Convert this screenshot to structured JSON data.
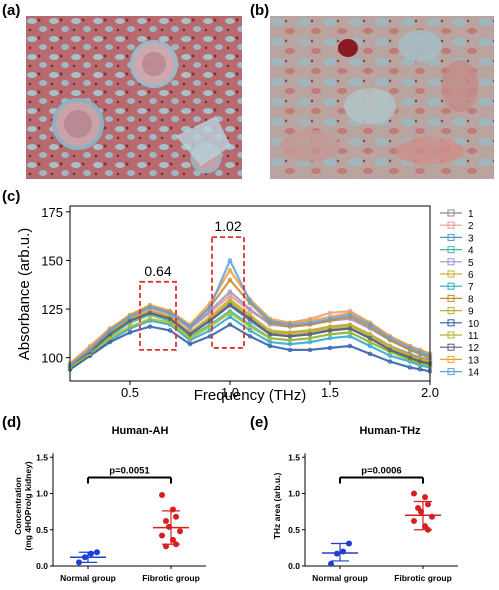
{
  "panels": {
    "a": {
      "label": "(a)"
    },
    "b": {
      "label": "(b)"
    },
    "c": {
      "label": "(c)"
    },
    "d": {
      "label": "(d)"
    },
    "e": {
      "label": "(e)"
    }
  },
  "colors": {
    "red": "#d62020",
    "blue": "#1f3fd0",
    "dash": "#e03030"
  },
  "chart_data": [
    {
      "id": "c",
      "type": "line",
      "xlabel": "Frequency (THz)",
      "ylabel": "Absorbance (arb.u.)",
      "xlim": [
        0.2,
        2.0
      ],
      "ylim": [
        88,
        178
      ],
      "xticks": [
        "0.5",
        "1.0",
        "1.5",
        "2.0"
      ],
      "yticks": [
        "100",
        "125",
        "150",
        "175"
      ],
      "xtick_values": [
        0.5,
        1.0,
        1.5,
        2.0
      ],
      "ytick_values": [
        100,
        125,
        150,
        175
      ],
      "annotations": [
        {
          "text": "0.64",
          "x0": 0.55,
          "x1": 0.73,
          "y0": 104,
          "y1": 139
        },
        {
          "text": "1.02",
          "x0": 0.91,
          "x1": 1.07,
          "y0": 105,
          "y1": 162
        }
      ],
      "legend_position": "right",
      "series": [
        {
          "name": "1",
          "color": "#8a8a8a",
          "marker": "square",
          "values": [
            96,
            104,
            113,
            120,
            124,
            121,
            113,
            120,
            128,
            120,
            113,
            113,
            114,
            116,
            117,
            112,
            106,
            102,
            100,
            99
          ]
        },
        {
          "name": "2",
          "color": "#e79a8a",
          "marker": "circle",
          "values": [
            97,
            106,
            115,
            121,
            125,
            122,
            115,
            123,
            132,
            124,
            118,
            118,
            120,
            123,
            124,
            118,
            111,
            106,
            104,
            102
          ]
        },
        {
          "name": "3",
          "color": "#4f8fd6",
          "marker": "triangle",
          "values": [
            95,
            103,
            112,
            119,
            123,
            120,
            112,
            119,
            127,
            119,
            112,
            111,
            112,
            114,
            115,
            110,
            104,
            100,
            98,
            97
          ]
        },
        {
          "name": "4",
          "color": "#3fb8a8",
          "marker": "triangle-down",
          "values": [
            94,
            102,
            111,
            118,
            122,
            119,
            111,
            117,
            124,
            117,
            110,
            109,
            110,
            112,
            113,
            108,
            103,
            99,
            97,
            96
          ]
        },
        {
          "name": "5",
          "color": "#9b8fd0",
          "marker": "diamond",
          "values": [
            96,
            105,
            114,
            121,
            126,
            123,
            115,
            124,
            134,
            125,
            117,
            116,
            117,
            119,
            120,
            115,
            109,
            104,
            102,
            100
          ]
        },
        {
          "name": "6",
          "color": "#c9b23a",
          "marker": "triangle-left",
          "values": [
            95,
            103,
            113,
            120,
            124,
            121,
            113,
            121,
            130,
            122,
            114,
            113,
            114,
            116,
            117,
            112,
            106,
            101,
            99,
            98
          ]
        },
        {
          "name": "7",
          "color": "#2aa6c9",
          "marker": "x",
          "values": [
            94,
            101,
            109,
            115,
            119,
            117,
            109,
            114,
            121,
            114,
            108,
            107,
            108,
            110,
            111,
            106,
            101,
            98,
            96,
            95
          ]
        },
        {
          "name": "8",
          "color": "#c48a2a",
          "marker": "star",
          "values": [
            96,
            104,
            114,
            122,
            127,
            124,
            116,
            126,
            140,
            128,
            118,
            116,
            117,
            119,
            121,
            116,
            109,
            104,
            102,
            100
          ]
        },
        {
          "name": "9",
          "color": "#b8b030",
          "marker": "hexagon",
          "values": [
            95,
            103,
            112,
            119,
            123,
            120,
            112,
            120,
            129,
            121,
            113,
            112,
            113,
            115,
            116,
            111,
            105,
            101,
            99,
            98
          ]
        },
        {
          "name": "10",
          "color": "#2a5aa8",
          "marker": "pentagon",
          "values": [
            94,
            101,
            108,
            113,
            116,
            114,
            107,
            111,
            117,
            111,
            106,
            104,
            104,
            105,
            106,
            102,
            98,
            95,
            94,
            93
          ]
        },
        {
          "name": "11",
          "color": "#a8b82a",
          "marker": "hexagon",
          "values": [
            95,
            102,
            110,
            116,
            120,
            118,
            110,
            116,
            123,
            116,
            110,
            109,
            110,
            112,
            113,
            108,
            103,
            99,
            97,
            96
          ]
        },
        {
          "name": "12",
          "color": "#5a5a7a",
          "marker": "x-square",
          "values": [
            96,
            103,
            112,
            119,
            123,
            120,
            112,
            119,
            127,
            120,
            112,
            111,
            112,
            114,
            115,
            110,
            104,
            100,
            98,
            97
          ]
        },
        {
          "name": "13",
          "color": "#f0a030",
          "marker": "triangle",
          "values": [
            97,
            105,
            115,
            122,
            127,
            124,
            117,
            128,
            145,
            130,
            120,
            118,
            119,
            121,
            123,
            118,
            111,
            106,
            104,
            102
          ]
        },
        {
          "name": "14",
          "color": "#5aa0e0",
          "marker": "pentagon",
          "values": [
            96,
            104,
            114,
            121,
            126,
            123,
            116,
            126,
            150,
            129,
            119,
            117,
            118,
            120,
            122,
            117,
            110,
            105,
            103,
            101
          ]
        }
      ],
      "x": [
        0.2,
        0.3,
        0.4,
        0.5,
        0.6,
        0.7,
        0.8,
        0.9,
        1.0,
        1.1,
        1.2,
        1.3,
        1.4,
        1.5,
        1.6,
        1.7,
        1.8,
        1.9,
        1.95,
        2.0
      ]
    },
    {
      "id": "d",
      "type": "scatter",
      "title": "Human-AH",
      "ylabel_lines": [
        "Concentration",
        "(mg 4HOPro/g kidney)"
      ],
      "categories": [
        "Normal group",
        "Fibrotic group"
      ],
      "yticks": [
        "0.0",
        "0.5",
        "1.0",
        "1.5"
      ],
      "ytick_values": [
        0,
        0.5,
        1.0,
        1.5
      ],
      "ylim": [
        0,
        1.6
      ],
      "significance": "p=0.0051",
      "groups": [
        {
          "category": "Normal group",
          "color": "#1f3fd0",
          "points": [
            0.05,
            0.12,
            0.17,
            0.19
          ],
          "mean": 0.12,
          "sd": [
            0.05,
            0.19
          ]
        },
        {
          "category": "Fibrotic group",
          "color": "#d62020",
          "points": [
            0.98,
            0.78,
            0.68,
            0.62,
            0.54,
            0.48,
            0.42,
            0.36,
            0.3,
            0.27
          ],
          "mean": 0.53,
          "sd": [
            0.3,
            0.76
          ]
        }
      ]
    },
    {
      "id": "e",
      "type": "scatter",
      "title": "Human-THz",
      "ylabel": "THz area (arb.u.)",
      "categories": [
        "Normal group",
        "Fibrotic group"
      ],
      "yticks": [
        "0.0",
        "0.5",
        "1.0",
        "1.5"
      ],
      "ytick_values": [
        0,
        0.5,
        1.0,
        1.5
      ],
      "ylim": [
        0,
        1.6
      ],
      "significance": "p=0.0006",
      "groups": [
        {
          "category": "Normal group",
          "color": "#1f3fd0",
          "points": [
            0.03,
            0.17,
            0.2,
            0.31
          ],
          "mean": 0.18,
          "sd": [
            0.07,
            0.31
          ]
        },
        {
          "category": "Fibrotic group",
          "color": "#d62020",
          "points": [
            1.0,
            0.95,
            0.85,
            0.8,
            0.75,
            0.68,
            0.62,
            0.55,
            0.5
          ],
          "mean": 0.7,
          "sd": [
            0.5,
            0.89
          ]
        }
      ]
    }
  ]
}
